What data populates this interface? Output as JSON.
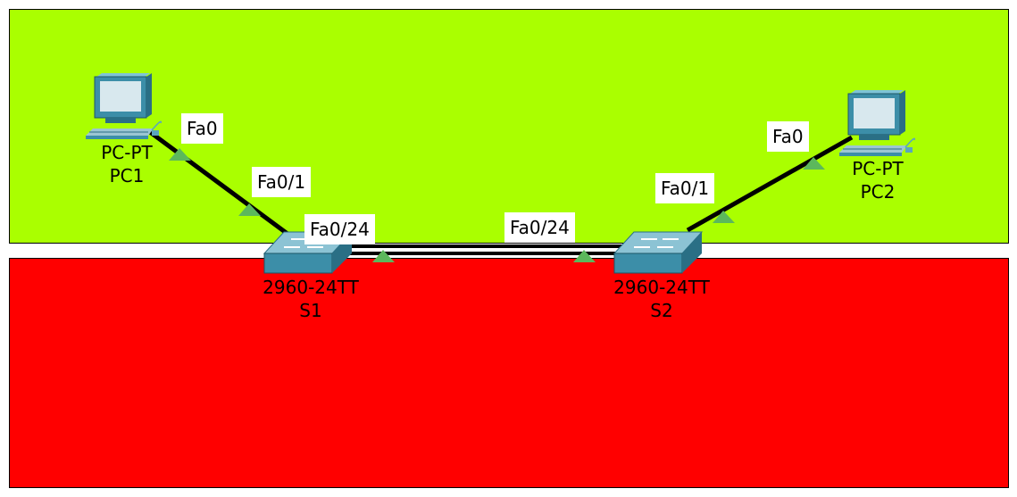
{
  "colors": {
    "top_area": "#aaff00",
    "bottom_area": "#ff0000",
    "link": "#000000",
    "port_marker": "#5cb85c",
    "device_teal": "#3c8ea8"
  },
  "areas": [
    {
      "name": "top-area",
      "color": "#aaff00"
    },
    {
      "name": "bottom-area",
      "color": "#ff0000"
    }
  ],
  "devices": {
    "pc1": {
      "model": "PC-PT",
      "name": "PC1",
      "icon": "pc-icon"
    },
    "pc2": {
      "model": "PC-PT",
      "name": "PC2",
      "icon": "pc-icon"
    },
    "s1": {
      "model": "2960-24TT",
      "name": "S1",
      "icon": "switch-icon"
    },
    "s2": {
      "model": "2960-24TT",
      "name": "S2",
      "icon": "switch-icon"
    }
  },
  "links": [
    {
      "from": "PC1",
      "from_port": "Fa0",
      "to": "S1",
      "to_port": "Fa0/1"
    },
    {
      "from": "S1",
      "from_port": "Fa0/24",
      "to": "S2",
      "to_port": "Fa0/24"
    },
    {
      "from": "S2",
      "from_port": "Fa0/1",
      "to": "PC2",
      "to_port": "Fa0"
    }
  ]
}
